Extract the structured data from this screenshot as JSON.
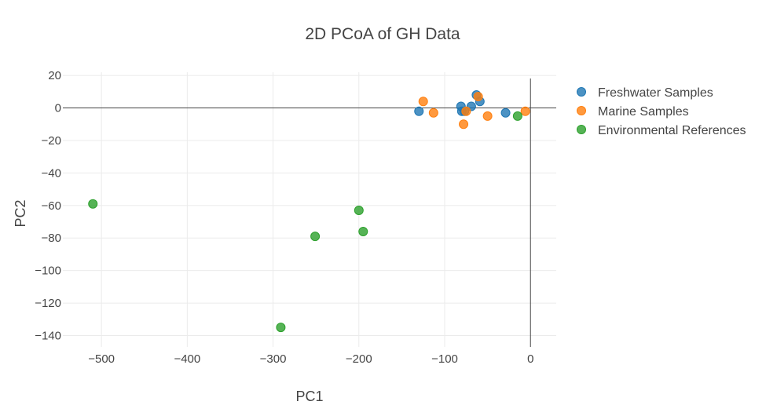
{
  "chart_data": {
    "type": "scatter",
    "title": "2D PCoA of GH Data",
    "xlabel": "PC1",
    "ylabel": "PC2",
    "xlim": [
      -545,
      30
    ],
    "ylim": [
      -147,
      22
    ],
    "x_ticks": [
      -500,
      -400,
      -300,
      -200,
      -100,
      0
    ],
    "y_ticks": [
      20,
      0,
      -20,
      -40,
      -60,
      -80,
      -100,
      -120,
      -140
    ],
    "x_tick_labels": [
      "−500",
      "−400",
      "−300",
      "−200",
      "−100",
      "0"
    ],
    "y_tick_labels": [
      "20",
      "0",
      "−20",
      "−40",
      "−60",
      "−80",
      "−100",
      "−120",
      "−140"
    ],
    "grid": true,
    "zerolines": true,
    "legend_position": "top-right",
    "series": [
      {
        "name": "Freshwater Samples",
        "color": "#1f77b4",
        "points": [
          {
            "x": -130,
            "y": -2
          },
          {
            "x": -81,
            "y": 1
          },
          {
            "x": -80,
            "y": -2
          },
          {
            "x": -77,
            "y": -2
          },
          {
            "x": -69,
            "y": 1
          },
          {
            "x": -63,
            "y": 8
          },
          {
            "x": -59,
            "y": 4
          },
          {
            "x": -29,
            "y": -3
          }
        ]
      },
      {
        "name": "Marine Samples",
        "color": "#ff7f0e",
        "points": [
          {
            "x": -125,
            "y": 4
          },
          {
            "x": -113,
            "y": -3
          },
          {
            "x": -78,
            "y": -10
          },
          {
            "x": -75,
            "y": -2
          },
          {
            "x": -61,
            "y": 7
          },
          {
            "x": -50,
            "y": -5
          },
          {
            "x": -6,
            "y": -2
          }
        ]
      },
      {
        "name": "Environmental References",
        "color": "#2ca02c",
        "points": [
          {
            "x": -510,
            "y": -59
          },
          {
            "x": -291,
            "y": -135
          },
          {
            "x": -251,
            "y": -79
          },
          {
            "x": -200,
            "y": -63
          },
          {
            "x": -195,
            "y": -76
          },
          {
            "x": -15,
            "y": -5
          }
        ]
      }
    ]
  }
}
